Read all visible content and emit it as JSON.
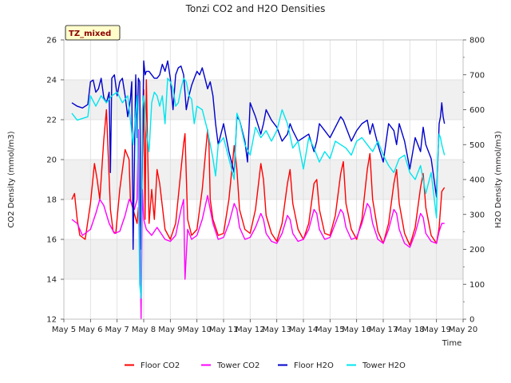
{
  "chart_data": {
    "type": "line",
    "title": "Tonzi CO2 and H2O Densities",
    "site_label": "TZ_mixed",
    "xlabel": "Time",
    "ylabel_left": "CO2 Density (mmol/m3)",
    "ylabel_right": "H2O Density (mmol/m3)",
    "ylim_left": [
      12,
      26
    ],
    "yticks_left": [
      12,
      14,
      16,
      18,
      20,
      22,
      24,
      26
    ],
    "ylim_right": [
      0,
      800
    ],
    "yticks_right": [
      0,
      100,
      200,
      300,
      400,
      500,
      600,
      700,
      800
    ],
    "xlim": [
      5,
      20
    ],
    "xticks": [
      5,
      6,
      7,
      8,
      9,
      10,
      11,
      12,
      13,
      14,
      15,
      16,
      17,
      18,
      19,
      20
    ],
    "xtick_labels": [
      "May 5",
      "May 6",
      "May 7",
      "May 8",
      "May 9",
      "May 10",
      "May 11",
      "May 12",
      "May 13",
      "May 14",
      "May 15",
      "May 16",
      "May 17",
      "May 18",
      "May 19",
      "May 20"
    ],
    "grid": true,
    "band_color": "#f0f0f0",
    "legend_position": "bottom",
    "series": [
      {
        "name": "Floor CO2",
        "axis": "left",
        "color": "#ff0000",
        "x": [
          5.3,
          5.4,
          5.5,
          5.6,
          5.8,
          6.0,
          6.15,
          6.25,
          6.35,
          6.5,
          6.6,
          6.75,
          6.85,
          6.95,
          7.1,
          7.3,
          7.45,
          7.5,
          7.6,
          7.75,
          7.8,
          7.9,
          8.0,
          8.05,
          8.1,
          8.2,
          8.3,
          8.4,
          8.5,
          8.6,
          8.8,
          9.0,
          9.2,
          9.4,
          9.5,
          9.55,
          9.65,
          9.8,
          10.0,
          10.2,
          10.4,
          10.45,
          10.5,
          10.6,
          10.8,
          11.0,
          11.2,
          11.4,
          11.5,
          11.6,
          11.8,
          12.0,
          12.2,
          12.4,
          12.5,
          12.6,
          12.8,
          13.0,
          13.2,
          13.4,
          13.5,
          13.6,
          13.8,
          14.0,
          14.2,
          14.4,
          14.5,
          14.6,
          14.8,
          15.0,
          15.2,
          15.4,
          15.5,
          15.6,
          15.8,
          16.0,
          16.2,
          16.4,
          16.5,
          16.6,
          16.8,
          17.0,
          17.2,
          17.4,
          17.5,
          17.6,
          17.8,
          18.0,
          18.2,
          18.4,
          18.5,
          18.6,
          18.8,
          19.0,
          19.1,
          19.2,
          19.3
        ],
        "y": [
          18.0,
          18.3,
          17.0,
          16.2,
          16.0,
          17.8,
          19.8,
          19.0,
          18.0,
          21.0,
          22.5,
          17.5,
          16.4,
          16.3,
          18.5,
          20.5,
          20.0,
          18.0,
          17.5,
          16.8,
          17.6,
          16.6,
          23.5,
          17.0,
          24.0,
          16.8,
          18.5,
          17.0,
          19.5,
          18.8,
          16.5,
          16.0,
          16.8,
          19.5,
          20.8,
          21.3,
          17.0,
          16.2,
          16.5,
          18.5,
          21.5,
          20.8,
          18.0,
          17.0,
          16.2,
          16.3,
          18.0,
          20.7,
          19.5,
          17.5,
          16.5,
          16.3,
          17.5,
          19.8,
          19.0,
          17.2,
          16.3,
          15.9,
          16.8,
          18.8,
          19.5,
          17.8,
          16.5,
          16.0,
          16.8,
          18.8,
          19.0,
          17.5,
          16.3,
          16.2,
          17.2,
          19.3,
          19.9,
          17.8,
          16.5,
          16.0,
          17.0,
          19.5,
          20.3,
          18.0,
          16.4,
          15.8,
          16.8,
          18.8,
          19.5,
          17.8,
          16.3,
          15.7,
          16.6,
          18.6,
          19.3,
          17.6,
          16.2,
          15.8,
          16.6,
          18.4,
          18.6
        ]
      },
      {
        "name": "Tower CO2",
        "axis": "left",
        "color": "#ff00ff",
        "x": [
          5.3,
          5.5,
          5.7,
          6.0,
          6.2,
          6.35,
          6.5,
          6.7,
          6.9,
          7.1,
          7.3,
          7.45,
          7.55,
          7.65,
          7.75,
          7.8,
          7.9,
          7.95,
          8.0,
          8.1,
          8.3,
          8.5,
          8.8,
          9.0,
          9.2,
          9.4,
          9.5,
          9.55,
          9.65,
          9.8,
          10.0,
          10.2,
          10.4,
          10.5,
          10.6,
          10.8,
          11.0,
          11.2,
          11.4,
          11.5,
          11.6,
          11.8,
          12.0,
          12.2,
          12.4,
          12.5,
          12.6,
          12.8,
          13.0,
          13.2,
          13.4,
          13.5,
          13.6,
          13.8,
          14.0,
          14.2,
          14.4,
          14.5,
          14.6,
          14.8,
          15.0,
          15.2,
          15.4,
          15.5,
          15.6,
          15.8,
          16.0,
          16.2,
          16.4,
          16.5,
          16.6,
          16.8,
          17.0,
          17.2,
          17.4,
          17.5,
          17.6,
          17.8,
          18.0,
          18.2,
          18.4,
          18.5,
          18.6,
          18.8,
          19.0,
          19.1,
          19.2,
          19.3
        ],
        "y": [
          17.0,
          16.8,
          16.2,
          16.5,
          17.3,
          18.0,
          17.7,
          16.8,
          16.3,
          16.4,
          17.2,
          18.0,
          17.8,
          17.5,
          18.0,
          21.5,
          12.0,
          18.5,
          17.0,
          16.5,
          16.2,
          16.6,
          16.0,
          15.9,
          16.2,
          17.5,
          18.0,
          14.0,
          16.5,
          16.0,
          16.2,
          17.0,
          18.2,
          17.5,
          16.8,
          16.0,
          16.1,
          16.8,
          17.8,
          17.5,
          16.6,
          16.0,
          16.1,
          16.6,
          17.3,
          17.0,
          16.3,
          15.9,
          15.8,
          16.3,
          17.2,
          17.0,
          16.3,
          15.9,
          16.0,
          16.5,
          17.5,
          17.3,
          16.5,
          16.0,
          16.1,
          16.8,
          17.5,
          17.3,
          16.6,
          16.0,
          16.1,
          16.8,
          17.8,
          17.6,
          16.8,
          16.0,
          15.8,
          16.5,
          17.5,
          17.3,
          16.5,
          15.8,
          15.6,
          16.3,
          17.3,
          17.1,
          16.3,
          15.9,
          15.8,
          16.4,
          16.8,
          16.8
        ]
      },
      {
        "name": "Floor H2O",
        "axis": "right",
        "color": "#0000cd",
        "x": [
          5.3,
          5.5,
          5.7,
          5.9,
          6.0,
          6.1,
          6.2,
          6.3,
          6.4,
          6.5,
          6.6,
          6.7,
          6.75,
          6.8,
          6.9,
          7.0,
          7.1,
          7.2,
          7.3,
          7.4,
          7.5,
          7.55,
          7.6,
          7.7,
          7.75,
          7.8,
          7.85,
          7.9,
          8.0,
          8.05,
          8.1,
          8.2,
          8.3,
          8.4,
          8.5,
          8.6,
          8.7,
          8.8,
          8.9,
          9.0,
          9.1,
          9.2,
          9.3,
          9.4,
          9.5,
          9.6,
          9.7,
          9.8,
          9.9,
          10.0,
          10.1,
          10.2,
          10.3,
          10.4,
          10.5,
          10.6,
          10.7,
          10.8,
          10.9,
          11.0,
          11.2,
          11.4,
          11.5,
          11.6,
          11.8,
          11.9,
          12.0,
          12.2,
          12.4,
          12.5,
          12.6,
          12.8,
          13.0,
          13.2,
          13.4,
          13.5,
          13.6,
          13.8,
          14.0,
          14.2,
          14.4,
          14.5,
          14.6,
          14.8,
          15.0,
          15.2,
          15.4,
          15.5,
          15.6,
          15.8,
          16.0,
          16.2,
          16.4,
          16.5,
          16.6,
          16.8,
          17.0,
          17.2,
          17.4,
          17.5,
          17.6,
          17.8,
          18.0,
          18.2,
          18.4,
          18.5,
          18.6,
          18.8,
          19.0,
          19.05,
          19.1,
          19.15,
          19.2,
          19.25,
          19.3
        ],
        "y": [
          620,
          610,
          605,
          615,
          680,
          685,
          650,
          660,
          690,
          635,
          620,
          650,
          420,
          690,
          700,
          640,
          680,
          690,
          640,
          580,
          630,
          680,
          200,
          700,
          520,
          690,
          680,
          200,
          740,
          700,
          710,
          710,
          700,
          690,
          690,
          700,
          730,
          710,
          740,
          690,
          600,
          700,
          720,
          725,
          700,
          600,
          640,
          670,
          690,
          710,
          700,
          720,
          690,
          660,
          680,
          640,
          560,
          500,
          530,
          560,
          480,
          420,
          580,
          570,
          510,
          450,
          620,
          580,
          530,
          560,
          600,
          570,
          550,
          510,
          530,
          560,
          540,
          510,
          520,
          530,
          480,
          510,
          560,
          540,
          520,
          550,
          580,
          570,
          550,
          510,
          540,
          560,
          570,
          530,
          560,
          500,
          450,
          560,
          540,
          500,
          560,
          510,
          430,
          520,
          480,
          550,
          500,
          460,
          350,
          450,
          560,
          580,
          620,
          580,
          560
        ]
      },
      {
        "name": "Tower H2O",
        "axis": "right",
        "color": "#00e5ee",
        "x": [
          5.3,
          5.5,
          5.7,
          5.9,
          6.0,
          6.2,
          6.4,
          6.6,
          6.8,
          7.0,
          7.2,
          7.4,
          7.6,
          7.75,
          7.8,
          7.85,
          7.9,
          7.95,
          8.0,
          8.05,
          8.1,
          8.2,
          8.3,
          8.4,
          8.5,
          8.6,
          8.7,
          8.8,
          8.9,
          9.0,
          9.1,
          9.2,
          9.3,
          9.4,
          9.5,
          9.6,
          9.7,
          9.8,
          9.9,
          10.0,
          10.2,
          10.4,
          10.6,
          10.7,
          10.8,
          11.0,
          11.2,
          11.4,
          11.5,
          11.6,
          11.8,
          12.0,
          12.2,
          12.4,
          12.6,
          12.8,
          13.0,
          13.2,
          13.4,
          13.6,
          13.8,
          14.0,
          14.2,
          14.4,
          14.6,
          14.8,
          15.0,
          15.2,
          15.4,
          15.6,
          15.8,
          16.0,
          16.2,
          16.4,
          16.6,
          16.8,
          17.0,
          17.2,
          17.4,
          17.6,
          17.8,
          18.0,
          18.2,
          18.4,
          18.6,
          18.8,
          19.0,
          19.05,
          19.1,
          19.15,
          19.2,
          19.3
        ],
        "y": [
          590,
          570,
          575,
          580,
          640,
          610,
          640,
          620,
          640,
          650,
          620,
          640,
          500,
          640,
          380,
          100,
          60,
          600,
          640,
          610,
          540,
          480,
          620,
          650,
          640,
          610,
          640,
          560,
          690,
          680,
          660,
          610,
          620,
          660,
          690,
          680,
          640,
          630,
          560,
          610,
          600,
          540,
          460,
          410,
          500,
          520,
          460,
          400,
          590,
          570,
          500,
          470,
          550,
          520,
          540,
          510,
          540,
          600,
          560,
          490,
          510,
          430,
          520,
          490,
          450,
          480,
          460,
          510,
          500,
          490,
          470,
          510,
          520,
          500,
          480,
          510,
          470,
          440,
          420,
          460,
          470,
          420,
          400,
          440,
          360,
          420,
          290,
          470,
          530,
          520,
          500,
          470
        ]
      }
    ]
  }
}
